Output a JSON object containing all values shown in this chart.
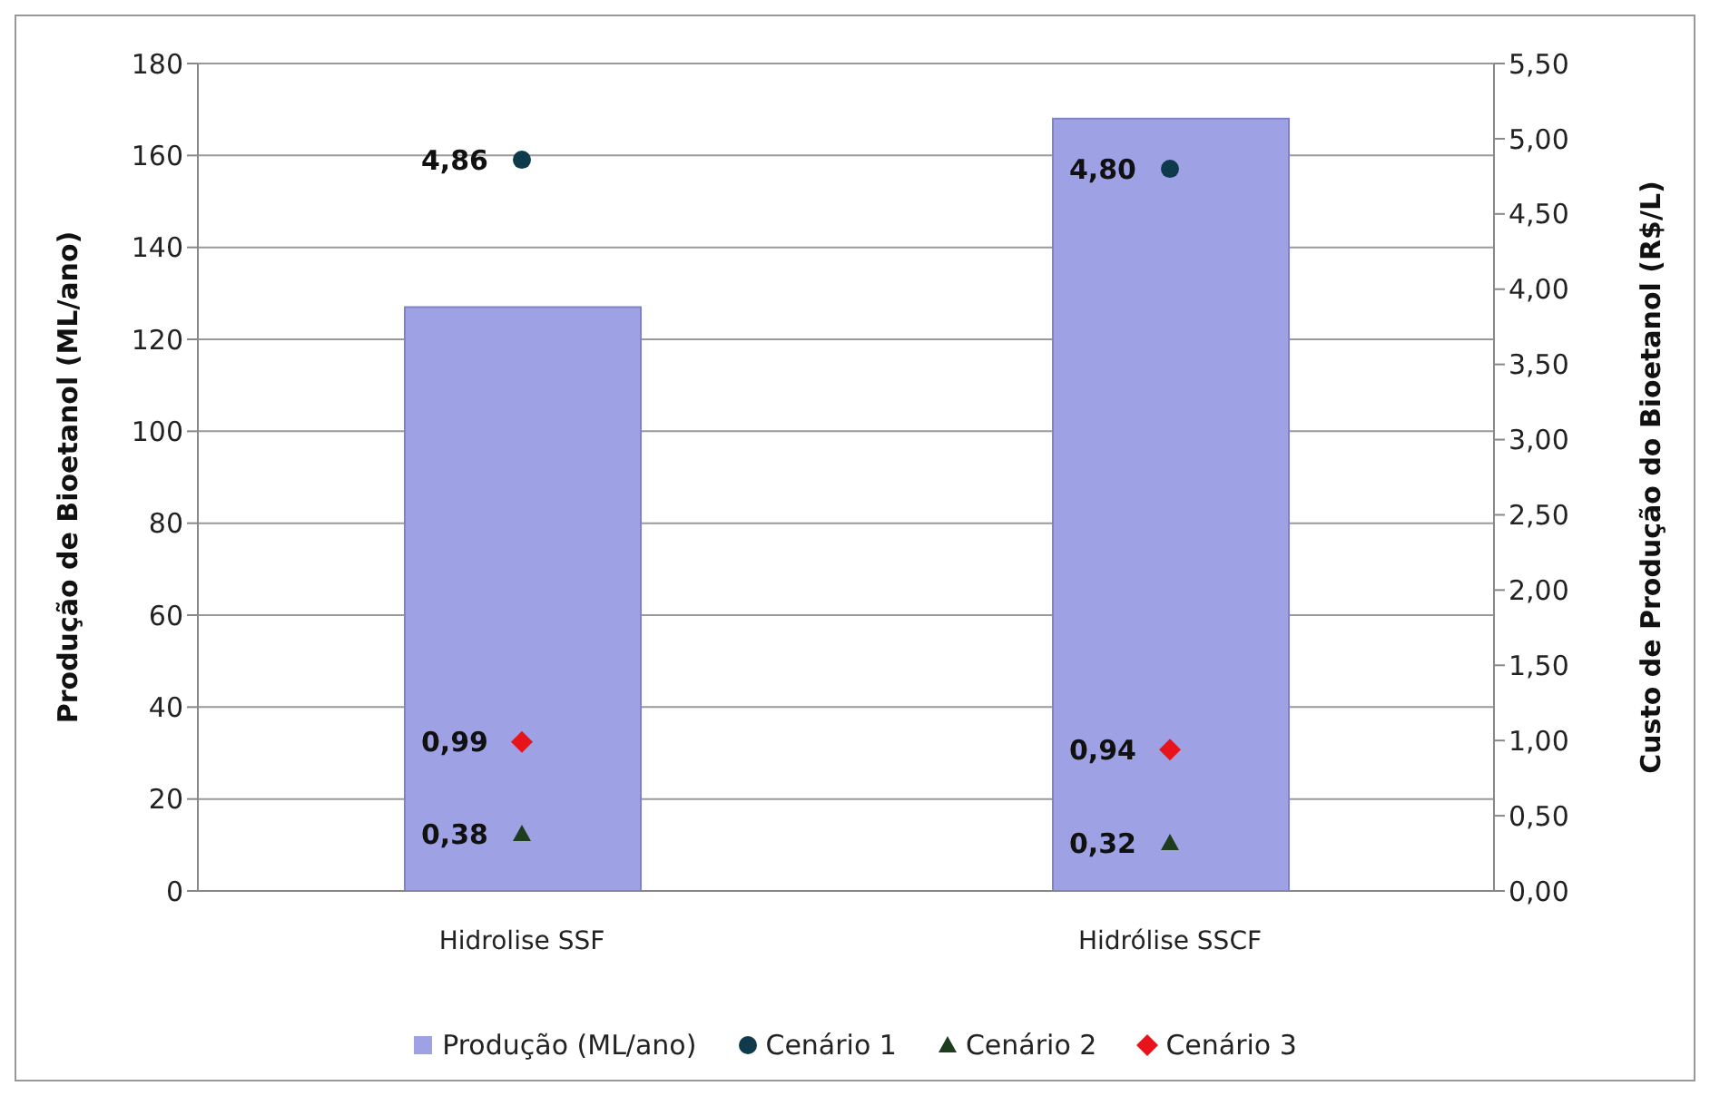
{
  "chart_data": {
    "type": "bar",
    "categories": [
      "Hidrolise SSF",
      "Hidrólise SSCF"
    ],
    "ylabel": "Produção de Bioetanol (ML/ano)",
    "y2label": "Custo de Produção do Bioetanol (R$/L)",
    "ylim": [
      0,
      180
    ],
    "yticks": [
      0,
      20,
      40,
      60,
      80,
      100,
      120,
      140,
      160,
      180
    ],
    "y2lim": [
      0,
      5.5
    ],
    "y2ticks": [
      {
        "value": 0,
        "label": "0,00"
      },
      {
        "value": 0.5,
        "label": "0,50"
      },
      {
        "value": 1,
        "label": "1,00"
      },
      {
        "value": 1.5,
        "label": "1,50"
      },
      {
        "value": 2,
        "label": "2,00"
      },
      {
        "value": 2.5,
        "label": "2,50"
      },
      {
        "value": 3,
        "label": "3,00"
      },
      {
        "value": 3.5,
        "label": "3,50"
      },
      {
        "value": 4,
        "label": "4,00"
      },
      {
        "value": 4.5,
        "label": "4,50"
      },
      {
        "value": 5,
        "label": "5,00"
      },
      {
        "value": 5.5,
        "label": "5,50"
      }
    ],
    "grid": "y",
    "legend": "bottom",
    "series": [
      {
        "name": "Produção (ML/ano)",
        "color": "#9ea2e4",
        "values": [
          127,
          168
        ]
      },
      {
        "name": "Cenário 1",
        "type": "scatter",
        "axis": "y2",
        "marker": "circle",
        "color": "#0e3a4c",
        "values": [
          4.86,
          4.8
        ],
        "value_labels": [
          "4,86",
          "4,80"
        ]
      },
      {
        "name": "Cenário 2",
        "type": "scatter",
        "axis": "y2",
        "marker": "triangle",
        "color": "#1e3d1e",
        "values": [
          0.38,
          0.32
        ],
        "value_labels": [
          "0,38",
          "0,32"
        ]
      },
      {
        "name": "Cenário 3",
        "type": "scatter",
        "axis": "y2",
        "marker": "diamond",
        "color": "#e8141b",
        "values": [
          0.99,
          0.94
        ],
        "value_labels": [
          "0,99",
          "0,94"
        ]
      }
    ]
  }
}
